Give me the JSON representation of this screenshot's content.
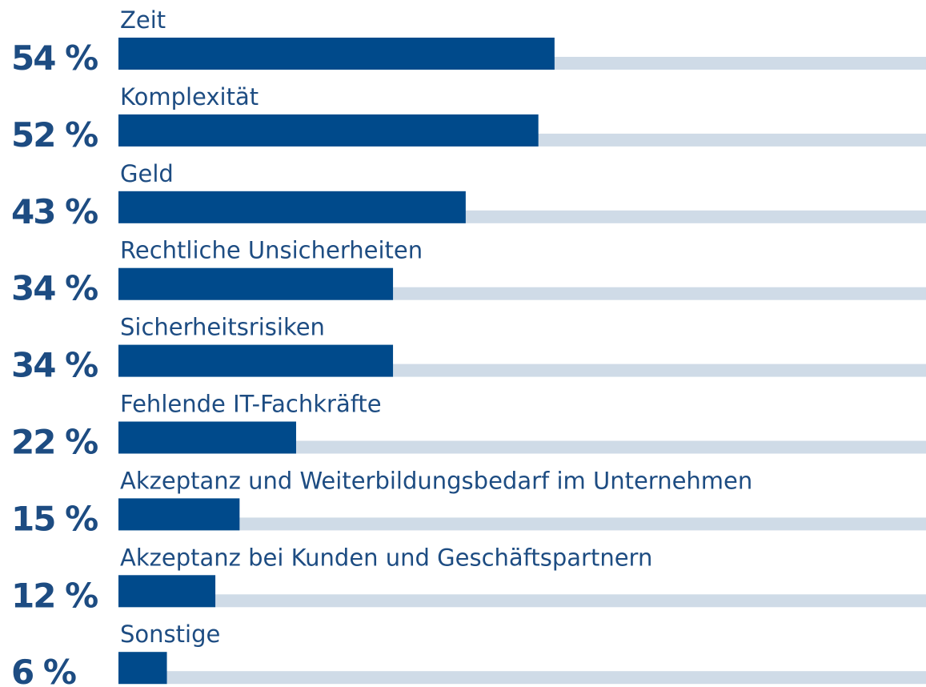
{
  "chart_data": {
    "type": "bar",
    "orientation": "horizontal",
    "categories": [
      "Zeit",
      "Komplexität",
      "Geld",
      "Rechtliche Unsicherheiten",
      "Sicherheitsrisiken",
      "Fehlende IT-Fachkräfte",
      "Akzeptanz und Weiterbildungsbedarf im Unternehmen",
      "Akzeptanz bei Kunden und Geschäftspartnern",
      "Sonstige"
    ],
    "values": [
      54,
      52,
      43,
      34,
      34,
      22,
      15,
      12,
      6
    ],
    "value_labels": [
      "54 %",
      "52 %",
      "43 %",
      "34 %",
      "34 %",
      "22 %",
      "15 %",
      "12 %",
      "6 %"
    ],
    "color": "#004a8b",
    "track_color": "#cfdbe7",
    "xlim": [
      0,
      100
    ]
  }
}
